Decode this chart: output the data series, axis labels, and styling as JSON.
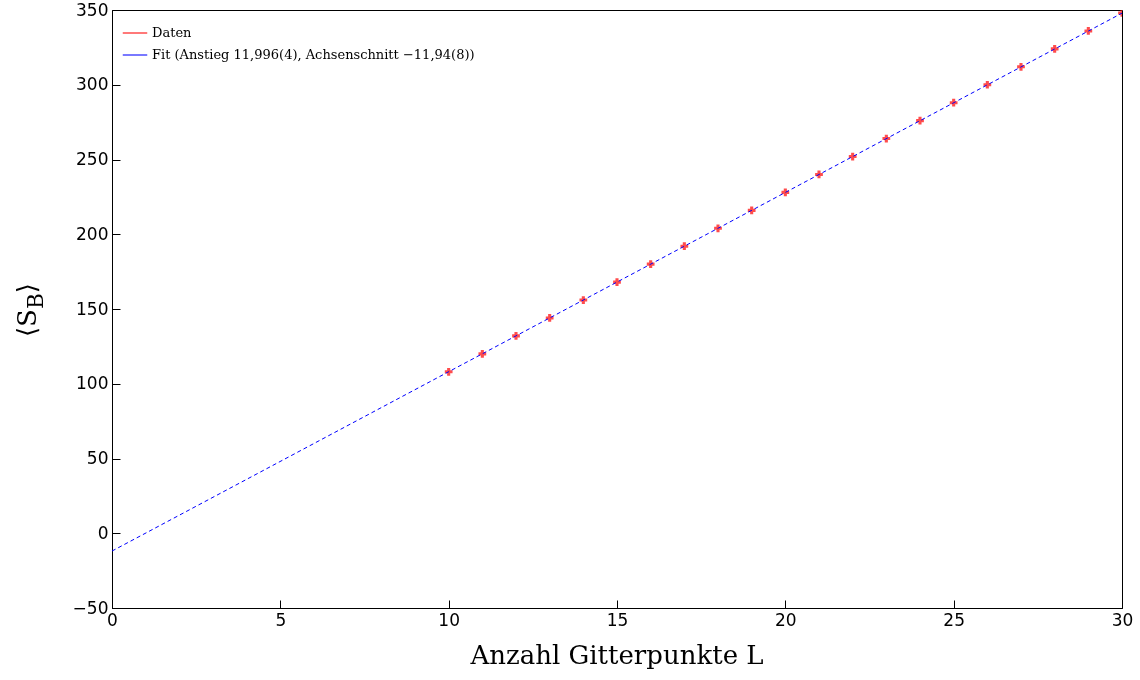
{
  "chart_data": {
    "type": "scatter",
    "xlabel": "Anzahl Gitterpunkte L",
    "ylabel": "⟨S$_{B}$⟩",
    "xlim": [
      0,
      30
    ],
    "xticks": [
      0,
      5,
      10,
      15,
      20,
      25,
      30
    ],
    "ylim": [
      -50,
      350
    ],
    "yticks": [
      -50,
      0,
      50,
      100,
      150,
      200,
      250,
      300,
      350
    ],
    "grid": false,
    "legend": "top left",
    "series": [
      {
        "name": "Daten",
        "marker": "cross",
        "color": "#ff0000",
        "x": [
          10,
          11,
          12,
          13,
          14,
          15,
          16,
          17,
          18,
          19,
          20,
          21,
          22,
          23,
          24,
          25,
          26,
          27,
          28,
          29,
          30
        ],
        "values": [
          108,
          120,
          132,
          144,
          156,
          168,
          180,
          192,
          204,
          216,
          228,
          240,
          252,
          264,
          276,
          288,
          300,
          312,
          324,
          336,
          348
        ]
      },
      {
        "name": "Fit (Anstieg 11,996(4), Achsenschnitt −11,94(8))",
        "type": "line",
        "line_style": "dashed",
        "color": "#0000ff",
        "x": [
          0,
          30
        ],
        "values": [
          -11.9,
          347.9
        ]
      }
    ]
  }
}
